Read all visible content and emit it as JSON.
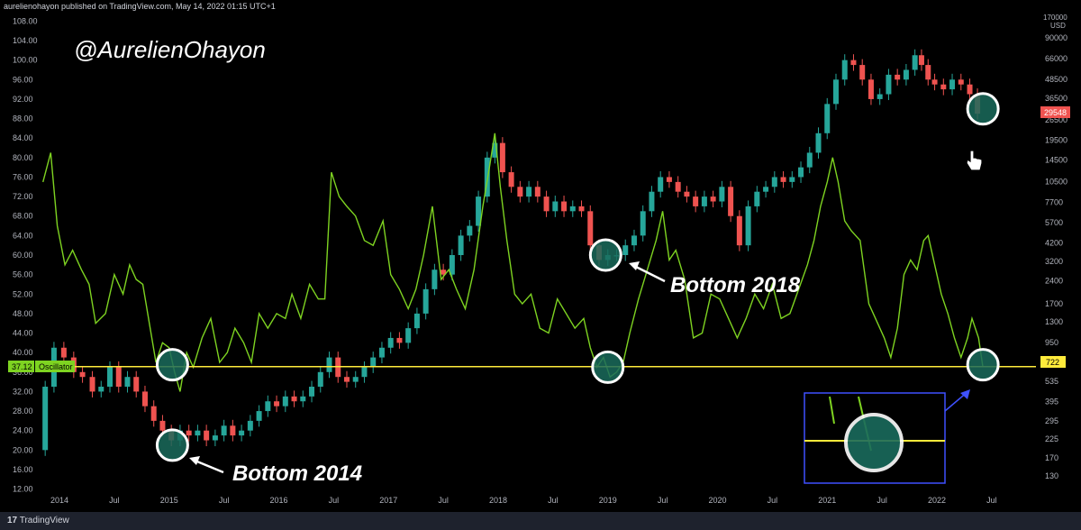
{
  "header": {
    "publish_info": "aurelienohayon published on TradingView.com, May 14, 2022 01:15 UTC+1"
  },
  "footer": {
    "brand_glyph": "17",
    "brand": "TradingView"
  },
  "chart_data": {
    "type": "line",
    "watermark": "@AurelienOhayon",
    "left_axis": {
      "ticks": [
        "108.00",
        "104.00",
        "100.00",
        "96.00",
        "92.00",
        "88.00",
        "84.00",
        "80.00",
        "76.00",
        "72.00",
        "68.00",
        "64.00",
        "60.00",
        "56.00",
        "52.00",
        "48.00",
        "44.00",
        "40.00",
        "36.00",
        "32.00",
        "28.00",
        "24.00",
        "20.00",
        "16.00",
        "12.00"
      ],
      "range": [
        11,
        109
      ]
    },
    "right_axis": {
      "unit_top": "170000",
      "unit": "USD",
      "ticks": [
        "90000",
        "66000",
        "48500",
        "36500",
        "26500",
        "19500",
        "14500",
        "10500",
        "7700",
        "5700",
        "4200",
        "3200",
        "2400",
        "1700",
        "1300",
        "950",
        "722",
        "535",
        "395",
        "295",
        "225",
        "170",
        "130"
      ],
      "scale": "log"
    },
    "x_axis": {
      "ticks": [
        "2014",
        "Jul",
        "2015",
        "Jul",
        "2016",
        "Jul",
        "2017",
        "Jul",
        "2018",
        "Jul",
        "2019",
        "Jul",
        "2020",
        "Jul",
        "2021",
        "Jul",
        "2022",
        "Jul"
      ]
    },
    "oscillator": {
      "name": "Oscillator",
      "color": "#7ed321",
      "level": 37.12,
      "level_label": "37.12",
      "points": [
        [
          2013.85,
          75
        ],
        [
          2013.92,
          81
        ],
        [
          2013.98,
          66
        ],
        [
          2014.05,
          58
        ],
        [
          2014.12,
          61
        ],
        [
          2014.2,
          57
        ],
        [
          2014.27,
          54
        ],
        [
          2014.33,
          46
        ],
        [
          2014.42,
          48
        ],
        [
          2014.5,
          56
        ],
        [
          2014.58,
          52
        ],
        [
          2014.64,
          58
        ],
        [
          2014.7,
          55
        ],
        [
          2014.76,
          54
        ],
        [
          2014.82,
          46
        ],
        [
          2014.88,
          38
        ],
        [
          2014.94,
          42
        ],
        [
          2015.0,
          41
        ],
        [
          2015.05,
          36
        ],
        [
          2015.1,
          32
        ],
        [
          2015.16,
          40
        ],
        [
          2015.22,
          37
        ],
        [
          2015.3,
          43
        ],
        [
          2015.38,
          47
        ],
        [
          2015.46,
          38
        ],
        [
          2015.53,
          40
        ],
        [
          2015.6,
          45
        ],
        [
          2015.68,
          42
        ],
        [
          2015.75,
          38
        ],
        [
          2015.82,
          48
        ],
        [
          2015.9,
          45
        ],
        [
          2015.98,
          48
        ],
        [
          2016.06,
          47
        ],
        [
          2016.12,
          52
        ],
        [
          2016.2,
          47
        ],
        [
          2016.28,
          54
        ],
        [
          2016.36,
          51
        ],
        [
          2016.42,
          51
        ],
        [
          2016.48,
          77
        ],
        [
          2016.55,
          72
        ],
        [
          2016.62,
          70
        ],
        [
          2016.7,
          68
        ],
        [
          2016.78,
          63
        ],
        [
          2016.86,
          62
        ],
        [
          2016.95,
          67
        ],
        [
          2017.02,
          56
        ],
        [
          2017.1,
          53
        ],
        [
          2017.18,
          49
        ],
        [
          2017.25,
          53
        ],
        [
          2017.32,
          60
        ],
        [
          2017.4,
          70
        ],
        [
          2017.48,
          55
        ],
        [
          2017.55,
          57
        ],
        [
          2017.62,
          53
        ],
        [
          2017.7,
          49
        ],
        [
          2017.78,
          57
        ],
        [
          2017.86,
          70
        ],
        [
          2017.92,
          78
        ],
        [
          2017.97,
          85
        ],
        [
          2018.02,
          74
        ],
        [
          2018.08,
          63
        ],
        [
          2018.15,
          52
        ],
        [
          2018.22,
          50
        ],
        [
          2018.3,
          52
        ],
        [
          2018.38,
          45
        ],
        [
          2018.46,
          44
        ],
        [
          2018.54,
          51
        ],
        [
          2018.62,
          48
        ],
        [
          2018.7,
          45
        ],
        [
          2018.78,
          47
        ],
        [
          2018.84,
          41
        ],
        [
          2018.9,
          37
        ],
        [
          2018.96,
          39
        ],
        [
          2019.02,
          35
        ],
        [
          2019.08,
          36
        ],
        [
          2019.14,
          38
        ],
        [
          2019.2,
          44
        ],
        [
          2019.28,
          51
        ],
        [
          2019.36,
          57
        ],
        [
          2019.44,
          63
        ],
        [
          2019.5,
          69
        ],
        [
          2019.56,
          59
        ],
        [
          2019.62,
          61
        ],
        [
          2019.7,
          55
        ],
        [
          2019.78,
          43
        ],
        [
          2019.86,
          44
        ],
        [
          2019.94,
          52
        ],
        [
          2020.02,
          51
        ],
        [
          2020.1,
          47
        ],
        [
          2020.18,
          43
        ],
        [
          2020.26,
          47
        ],
        [
          2020.34,
          52
        ],
        [
          2020.42,
          49
        ],
        [
          2020.5,
          54
        ],
        [
          2020.58,
          47
        ],
        [
          2020.66,
          48
        ],
        [
          2020.74,
          53
        ],
        [
          2020.82,
          58
        ],
        [
          2020.88,
          63
        ],
        [
          2020.94,
          70
        ],
        [
          2021.0,
          75
        ],
        [
          2021.05,
          80
        ],
        [
          2021.1,
          75
        ],
        [
          2021.16,
          67
        ],
        [
          2021.22,
          65
        ],
        [
          2021.3,
          63
        ],
        [
          2021.38,
          50
        ],
        [
          2021.46,
          46
        ],
        [
          2021.52,
          43
        ],
        [
          2021.58,
          39
        ],
        [
          2021.64,
          45
        ],
        [
          2021.7,
          56
        ],
        [
          2021.76,
          59
        ],
        [
          2021.82,
          57
        ],
        [
          2021.88,
          63
        ],
        [
          2021.92,
          64
        ],
        [
          2021.98,
          58
        ],
        [
          2022.04,
          52
        ],
        [
          2022.1,
          48
        ],
        [
          2022.16,
          43
        ],
        [
          2022.22,
          39
        ],
        [
          2022.28,
          43
        ],
        [
          2022.32,
          47
        ],
        [
          2022.38,
          43
        ],
        [
          2022.42,
          37
        ]
      ]
    },
    "price": {
      "current": "29548",
      "level_label": "722",
      "up_color": "#26a69a",
      "down_color": "#ef5350",
      "candles": [
        [
          2013.87,
          20,
          33
        ],
        [
          2013.95,
          33,
          41
        ],
        [
          2014.04,
          41,
          39
        ],
        [
          2014.13,
          39,
          36
        ],
        [
          2014.21,
          36,
          35
        ],
        [
          2014.3,
          35,
          32
        ],
        [
          2014.38,
          32,
          33
        ],
        [
          2014.46,
          33,
          37
        ],
        [
          2014.54,
          37,
          33
        ],
        [
          2014.62,
          33,
          35
        ],
        [
          2014.7,
          35,
          32
        ],
        [
          2014.78,
          32,
          29
        ],
        [
          2014.86,
          29,
          26
        ],
        [
          2014.94,
          26,
          24
        ],
        [
          2015.02,
          24,
          22
        ],
        [
          2015.1,
          22,
          24
        ],
        [
          2015.18,
          24,
          23
        ],
        [
          2015.26,
          23,
          24
        ],
        [
          2015.34,
          24,
          22
        ],
        [
          2015.42,
          22,
          23
        ],
        [
          2015.5,
          23,
          25
        ],
        [
          2015.58,
          25,
          23
        ],
        [
          2015.66,
          23,
          24
        ],
        [
          2015.74,
          24,
          26
        ],
        [
          2015.82,
          26,
          28
        ],
        [
          2015.9,
          28,
          30
        ],
        [
          2015.98,
          30,
          29
        ],
        [
          2016.06,
          29,
          31
        ],
        [
          2016.14,
          31,
          30
        ],
        [
          2016.22,
          30,
          31
        ],
        [
          2016.3,
          31,
          33
        ],
        [
          2016.38,
          33,
          36
        ],
        [
          2016.46,
          36,
          39
        ],
        [
          2016.54,
          39,
          35
        ],
        [
          2016.62,
          35,
          34
        ],
        [
          2016.7,
          34,
          35
        ],
        [
          2016.78,
          35,
          37
        ],
        [
          2016.86,
          37,
          39
        ],
        [
          2016.94,
          39,
          41
        ],
        [
          2017.02,
          41,
          43
        ],
        [
          2017.1,
          43,
          42
        ],
        [
          2017.18,
          42,
          45
        ],
        [
          2017.26,
          45,
          48
        ],
        [
          2017.34,
          48,
          53
        ],
        [
          2017.42,
          53,
          57
        ],
        [
          2017.5,
          57,
          56
        ],
        [
          2017.58,
          56,
          60
        ],
        [
          2017.66,
          60,
          64
        ],
        [
          2017.74,
          64,
          66
        ],
        [
          2017.82,
          66,
          72
        ],
        [
          2017.9,
          72,
          80
        ],
        [
          2017.97,
          80,
          83
        ],
        [
          2018.04,
          83,
          77
        ],
        [
          2018.12,
          77,
          74
        ],
        [
          2018.2,
          74,
          72
        ],
        [
          2018.28,
          72,
          74
        ],
        [
          2018.36,
          74,
          72
        ],
        [
          2018.44,
          72,
          69
        ],
        [
          2018.52,
          69,
          71
        ],
        [
          2018.6,
          71,
          69
        ],
        [
          2018.68,
          69,
          70
        ],
        [
          2018.76,
          70,
          69
        ],
        [
          2018.84,
          69,
          62
        ],
        [
          2018.92,
          62,
          59
        ],
        [
          2019.0,
          59,
          60
        ],
        [
          2019.08,
          60,
          60
        ],
        [
          2019.16,
          60,
          62
        ],
        [
          2019.24,
          62,
          64
        ],
        [
          2019.32,
          64,
          69
        ],
        [
          2019.4,
          69,
          73
        ],
        [
          2019.48,
          73,
          76
        ],
        [
          2019.56,
          76,
          75
        ],
        [
          2019.64,
          75,
          73
        ],
        [
          2019.72,
          73,
          72
        ],
        [
          2019.8,
          72,
          70
        ],
        [
          2019.88,
          70,
          72
        ],
        [
          2019.96,
          72,
          71
        ],
        [
          2020.04,
          71,
          74
        ],
        [
          2020.12,
          74,
          68
        ],
        [
          2020.2,
          68,
          62
        ],
        [
          2020.28,
          62,
          70
        ],
        [
          2020.36,
          70,
          73
        ],
        [
          2020.44,
          73,
          74
        ],
        [
          2020.52,
          74,
          76
        ],
        [
          2020.6,
          76,
          75
        ],
        [
          2020.68,
          75,
          76
        ],
        [
          2020.76,
          76,
          78
        ],
        [
          2020.84,
          78,
          81
        ],
        [
          2020.92,
          81,
          85
        ],
        [
          2021.0,
          85,
          91
        ],
        [
          2021.08,
          91,
          96
        ],
        [
          2021.16,
          96,
          100
        ],
        [
          2021.24,
          100,
          99
        ],
        [
          2021.32,
          99,
          96
        ],
        [
          2021.4,
          96,
          92
        ],
        [
          2021.48,
          92,
          93
        ],
        [
          2021.56,
          93,
          97
        ],
        [
          2021.64,
          97,
          96
        ],
        [
          2021.72,
          96,
          98
        ],
        [
          2021.8,
          98,
          101
        ],
        [
          2021.86,
          101,
          99
        ],
        [
          2021.92,
          99,
          96
        ],
        [
          2021.98,
          96,
          95
        ],
        [
          2022.06,
          95,
          94
        ],
        [
          2022.14,
          94,
          96
        ],
        [
          2022.22,
          96,
          95
        ],
        [
          2022.3,
          95,
          93
        ],
        [
          2022.37,
          93,
          89
        ]
      ]
    },
    "annotations": [
      {
        "text": "Bottom 2014"
      },
      {
        "text": "Bottom 2018"
      }
    ]
  }
}
